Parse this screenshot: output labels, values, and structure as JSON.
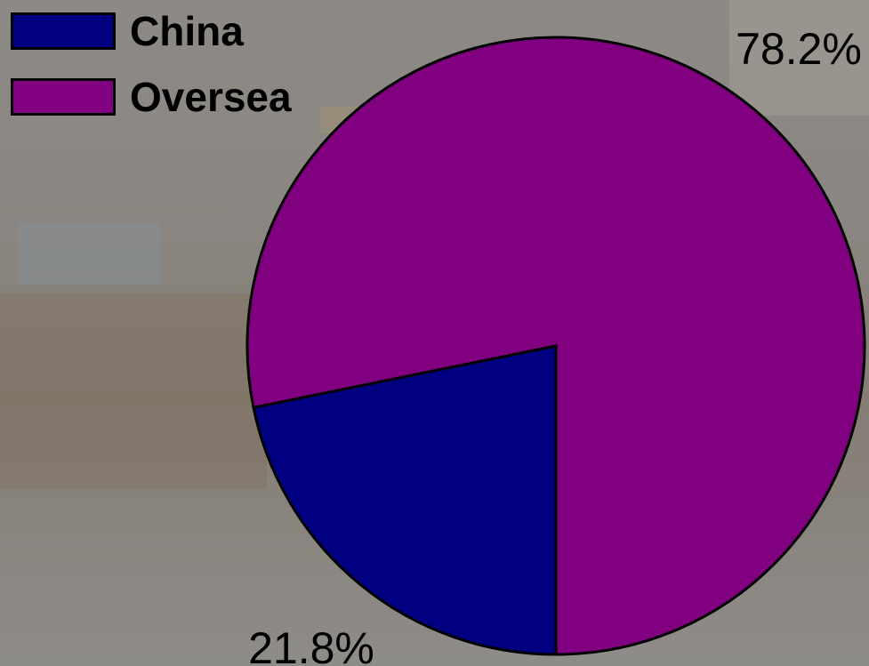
{
  "chart_data": {
    "type": "pie",
    "categories": [
      "China",
      "Oversea"
    ],
    "values": [
      21.8,
      78.2
    ],
    "labels": [
      "21.8%",
      "78.2%"
    ],
    "colors": [
      "#000080",
      "#800080"
    ],
    "title": "",
    "legend": {
      "placement": "top-left",
      "items": [
        {
          "label": "China",
          "color": "#000080"
        },
        {
          "label": "Oversea",
          "color": "#800080"
        }
      ]
    }
  }
}
